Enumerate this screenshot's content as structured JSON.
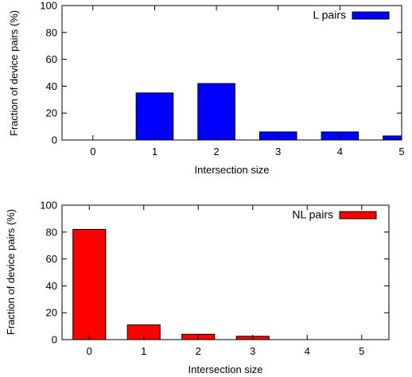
{
  "chart_data": [
    {
      "type": "bar",
      "categories": [
        "0",
        "1",
        "2",
        "3",
        "4",
        "5"
      ],
      "series": [
        {
          "name": "L pairs",
          "values": [
            0,
            35,
            42,
            6,
            6,
            3
          ],
          "color": "#0000ff"
        }
      ],
      "xlabel": "Intersection size",
      "ylabel": "Fraction of device pairs (%)",
      "ylim": [
        0,
        100
      ],
      "yticks": [
        "0",
        "20",
        "40",
        "60",
        "80",
        "100"
      ],
      "xlim": [
        -0.5,
        5
      ],
      "grid": false,
      "legend": "top-right"
    },
    {
      "type": "bar",
      "categories": [
        "0",
        "1",
        "2",
        "3",
        "4",
        "5"
      ],
      "series": [
        {
          "name": "NL pairs",
          "values": [
            82,
            11,
            4,
            2.5,
            0,
            0
          ],
          "color": "#ff0000"
        }
      ],
      "xlabel": "Intersection size",
      "ylabel": "Fraction of device pairs (%)",
      "ylim": [
        0,
        100
      ],
      "yticks": [
        "0",
        "20",
        "40",
        "60",
        "80",
        "100"
      ],
      "xlim": [
        -0.5,
        5.5
      ],
      "grid": false,
      "legend": "top-right"
    }
  ]
}
